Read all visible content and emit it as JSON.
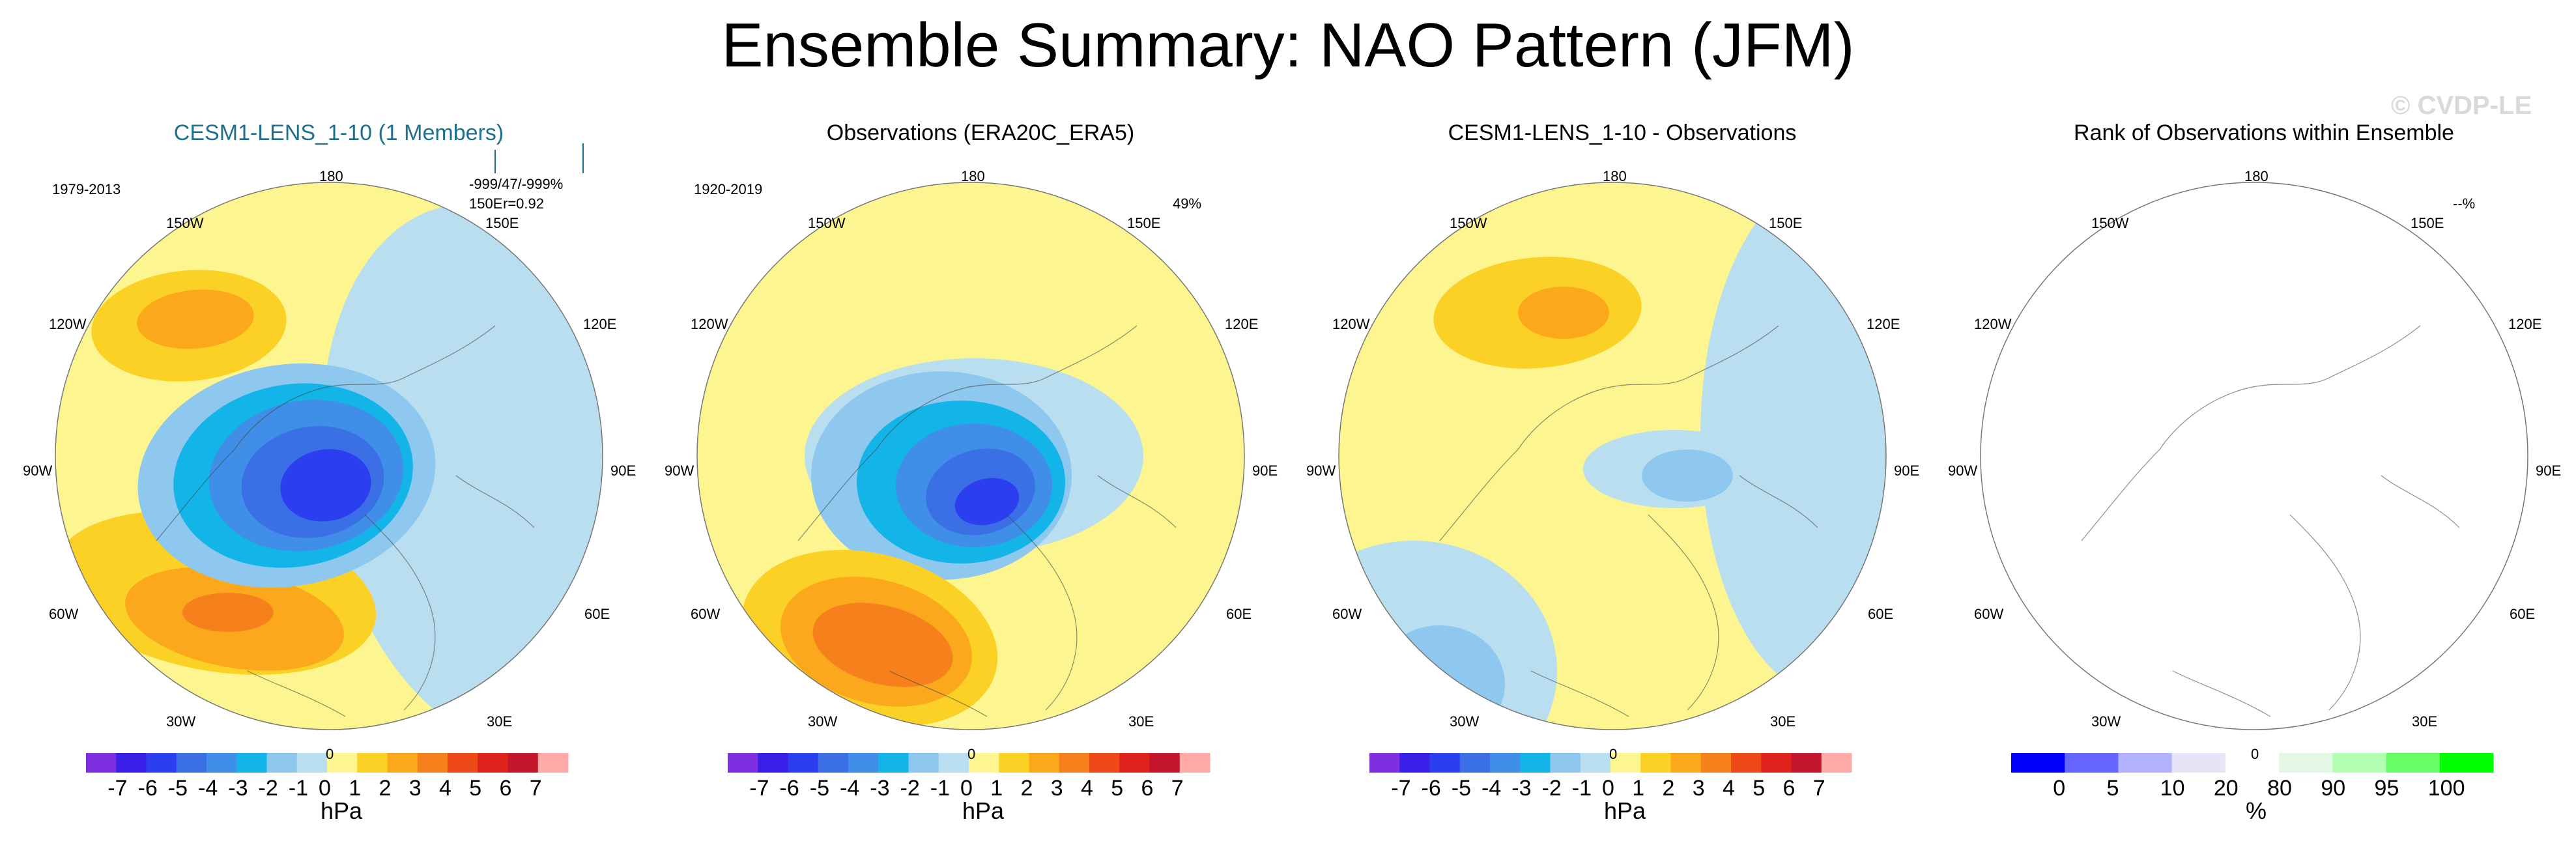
{
  "title": "Ensemble Summary: NAO Pattern (JFM)",
  "watermark": "© CVDP-LE",
  "lon_labels": {
    "top": "180",
    "ul": "150W",
    "ur": "150E",
    "ml": "120W",
    "mr": "120E",
    "l": "90W",
    "r": "90E",
    "ll": "60W",
    "lr": "60E",
    "bl": "30W",
    "br": "30E",
    "bottom": "0"
  },
  "panels": [
    {
      "title": "CESM1-LENS_1-10 (1 Members)",
      "period": "1979-2013",
      "stats_line1": "-999/47/-999%",
      "stats_line2": "150E",
      "stats_r": "r=0.92",
      "unit": "hPa",
      "ticks": [
        "-7",
        "-6",
        "-5",
        "-4",
        "-3",
        "-2",
        "-1",
        "0",
        "1",
        "2",
        "3",
        "4",
        "5",
        "6",
        "7"
      ]
    },
    {
      "title": "Observations (ERA20C_ERA5)",
      "period": "1920-2019",
      "corner": "49%",
      "unit": "hPa",
      "ticks": [
        "-7",
        "-6",
        "-5",
        "-4",
        "-3",
        "-2",
        "-1",
        "0",
        "1",
        "2",
        "3",
        "4",
        "5",
        "6",
        "7"
      ]
    },
    {
      "title": "CESM1-LENS_1-10 - Observations",
      "unit": "hPa",
      "ticks": [
        "-7",
        "-6",
        "-5",
        "-4",
        "-3",
        "-2",
        "-1",
        "0",
        "1",
        "2",
        "3",
        "4",
        "5",
        "6",
        "7"
      ]
    },
    {
      "title": "Rank of Observations within Ensemble",
      "corner": "--%",
      "unit": "%",
      "ticks": [
        "0",
        "5",
        "10",
        "20",
        "80",
        "90",
        "95",
        "100"
      ]
    }
  ],
  "chart_data": [
    {
      "type": "heatmap",
      "title": "CESM1-LENS_1-10 (1 Members)",
      "projection": "north polar stereographic",
      "field": "NAO sea level pressure pattern",
      "units": "hPa",
      "levels": [
        -7,
        -6,
        -5,
        -4,
        -3,
        -2,
        -1,
        0,
        1,
        2,
        3,
        4,
        5,
        6,
        7
      ],
      "colors": [
        "#7f2ee0",
        "#3a1fe8",
        "#2c3ff0",
        "#3a6fe6",
        "#3f8fe8",
        "#13b5e8",
        "#8ec8ee",
        "#b8def0",
        "#fdf58f",
        "#fbd125",
        "#fba81c",
        "#f6801c",
        "#ee4a17",
        "#e0221c",
        "#c4162a",
        "#fdaaa8"
      ]
    },
    {
      "type": "heatmap",
      "title": "Observations (ERA20C_ERA5)",
      "projection": "north polar stereographic",
      "units": "hPa",
      "levels": [
        -7,
        -6,
        -5,
        -4,
        -3,
        -2,
        -1,
        0,
        1,
        2,
        3,
        4,
        5,
        6,
        7
      ]
    },
    {
      "type": "heatmap",
      "title": "CESM1-LENS_1-10 - Observations",
      "projection": "north polar stereographic",
      "units": "hPa",
      "levels": [
        -7,
        -6,
        -5,
        -4,
        -3,
        -2,
        -1,
        0,
        1,
        2,
        3,
        4,
        5,
        6,
        7
      ]
    },
    {
      "type": "heatmap",
      "title": "Rank of Observations within Ensemble",
      "projection": "north polar stereographic",
      "units": "%",
      "levels": [
        0,
        5,
        10,
        20,
        80,
        90,
        95,
        100
      ],
      "colors": [
        "#0000ff",
        "#6666ff",
        "#b2b2ff",
        "#e5e5f7",
        "#ffffff",
        "#e5f7e5",
        "#b2ffb2",
        "#66ff66",
        "#00ff00"
      ]
    }
  ],
  "colors": {
    "diff": [
      "#7f2ee0",
      "#3a1fe8",
      "#2c3ff0",
      "#3a6fe6",
      "#3f8fe8",
      "#13b5e8",
      "#8ec8ee",
      "#b8def0",
      "#fdf58f",
      "#fbd125",
      "#fba81c",
      "#f6801c",
      "#ee4a17",
      "#e0221c",
      "#c4162a",
      "#fdaaa8"
    ],
    "rank": [
      "#0000ff",
      "#6666ff",
      "#b2b2ff",
      "#e5e5f7",
      "#ffffff",
      "#e5f7e5",
      "#b2ffb2",
      "#66ff66",
      "#00ff00"
    ]
  }
}
